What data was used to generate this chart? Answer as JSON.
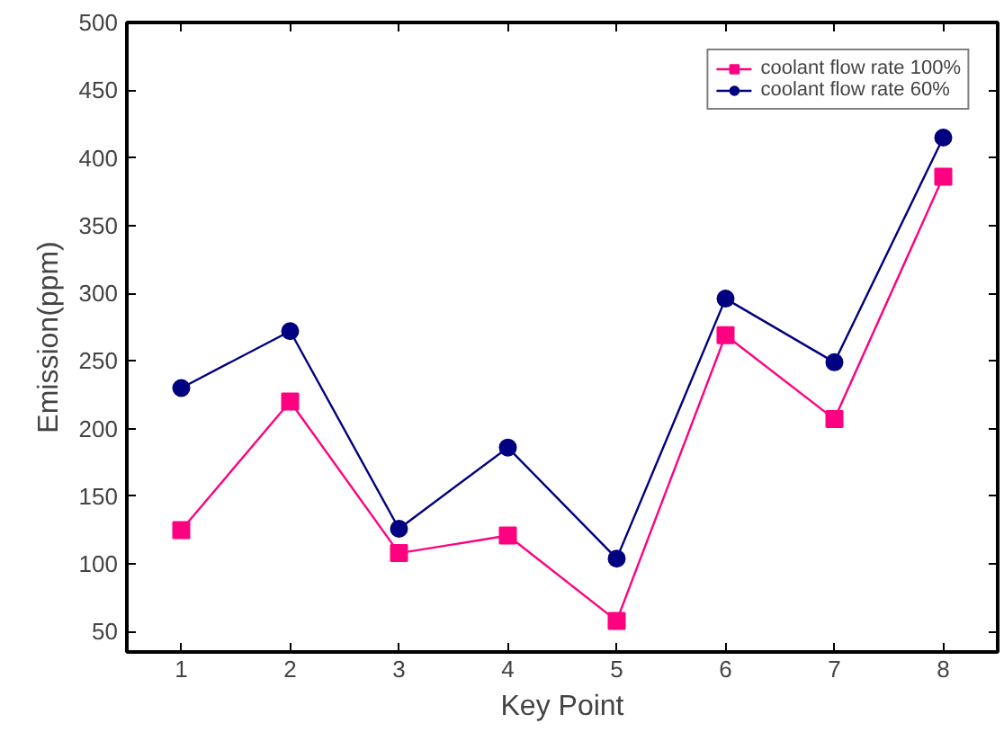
{
  "chart_data": {
    "type": "line",
    "xlabel": "Key Point",
    "ylabel": "Emission(ppm)",
    "x": [
      1,
      2,
      3,
      4,
      5,
      6,
      7,
      8
    ],
    "xlim": [
      0.5,
      8.5
    ],
    "xticks": [
      1,
      2,
      3,
      4,
      5,
      6,
      7,
      8
    ],
    "ylim": [
      35,
      500
    ],
    "yticks": [
      50,
      100,
      150,
      200,
      250,
      300,
      350,
      400,
      450,
      500
    ],
    "series": [
      {
        "name": "coolant flow rate 100%",
        "color": "#ff0080",
        "marker": "square",
        "values": [
          125,
          220,
          108,
          121,
          58,
          269,
          207,
          386
        ]
      },
      {
        "name": "coolant flow rate 60%",
        "color": "#000080",
        "marker": "circle",
        "values": [
          230,
          272,
          126,
          186,
          104,
          296,
          249,
          415
        ]
      }
    ],
    "grid": false,
    "legend": "top right",
    "line_style": "solid"
  }
}
